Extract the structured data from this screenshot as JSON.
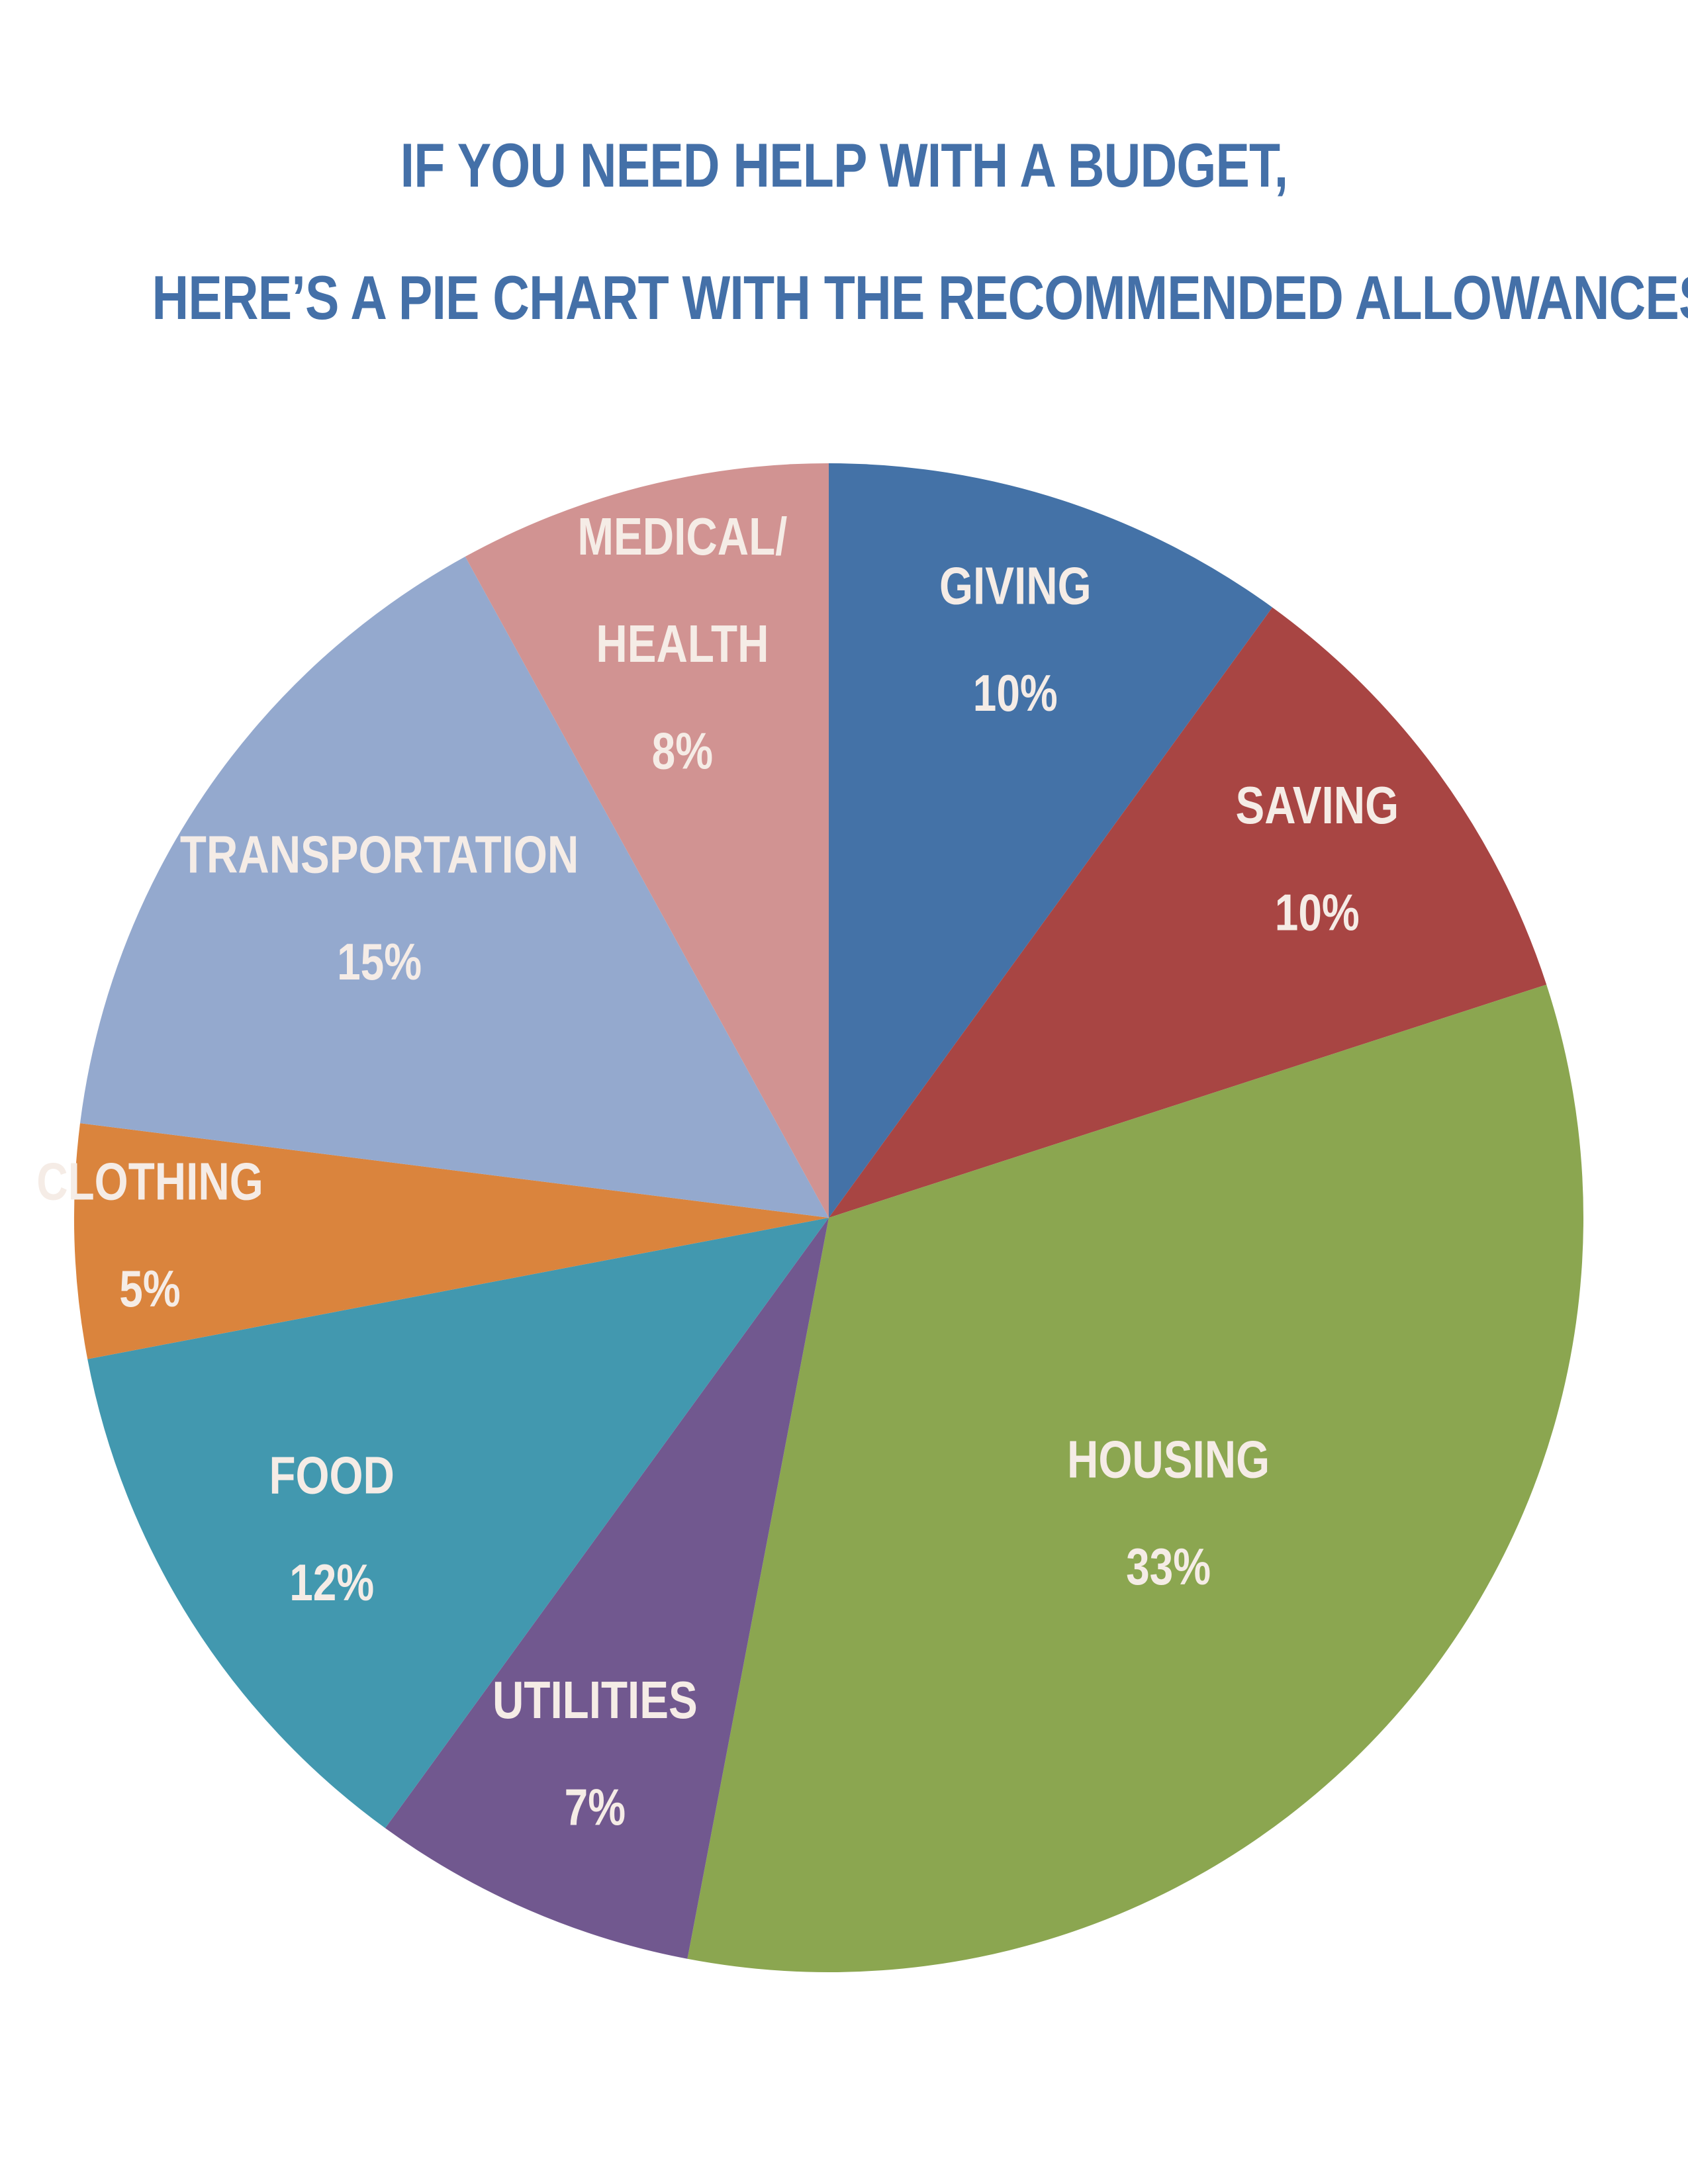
{
  "title": {
    "line1": "IF YOU NEED HELP WITH A BUDGET,",
    "line2": "HERE’S A PIE CHART WITH THE RECOMMENDED ALLOWANCES"
  },
  "chart_data": {
    "type": "pie",
    "unit": "%",
    "start": "12 o'clock",
    "direction": "clockwise",
    "slices": [
      {
        "name": "GIVING",
        "label_lines": [
          "GIVING"
        ],
        "value_label": "10%",
        "value": 10,
        "color": "#4472a7"
      },
      {
        "name": "SAVING",
        "label_lines": [
          "SAVING"
        ],
        "value_label": "10%",
        "value": 10,
        "color": "#a84543"
      },
      {
        "name": "HOUSING",
        "label_lines": [
          "HOUSING"
        ],
        "value_label": "33%",
        "value": 33,
        "color": "#8ba650"
      },
      {
        "name": "UTILITIES",
        "label_lines": [
          "UTILITIES"
        ],
        "value_label": "7%",
        "value": 7,
        "color": "#71588f"
      },
      {
        "name": "FOOD",
        "label_lines": [
          "FOOD"
        ],
        "value_label": "12%",
        "value": 12,
        "color": "#4298af"
      },
      {
        "name": "CLOTHING",
        "label_lines": [
          "CLOTHING"
        ],
        "value_label": "5%",
        "value": 5,
        "color": "#da843d"
      },
      {
        "name": "TRANSPORTATION",
        "label_lines": [
          "TRANSPORTATION"
        ],
        "value_label": "15%",
        "value": 15,
        "color": "#94a9ce"
      },
      {
        "name": "MEDICAL/HEALTH",
        "label_lines": [
          "MEDICAL/",
          "HEALTH"
        ],
        "value_label": "8%",
        "value": 8,
        "color": "#d19392"
      }
    ]
  }
}
